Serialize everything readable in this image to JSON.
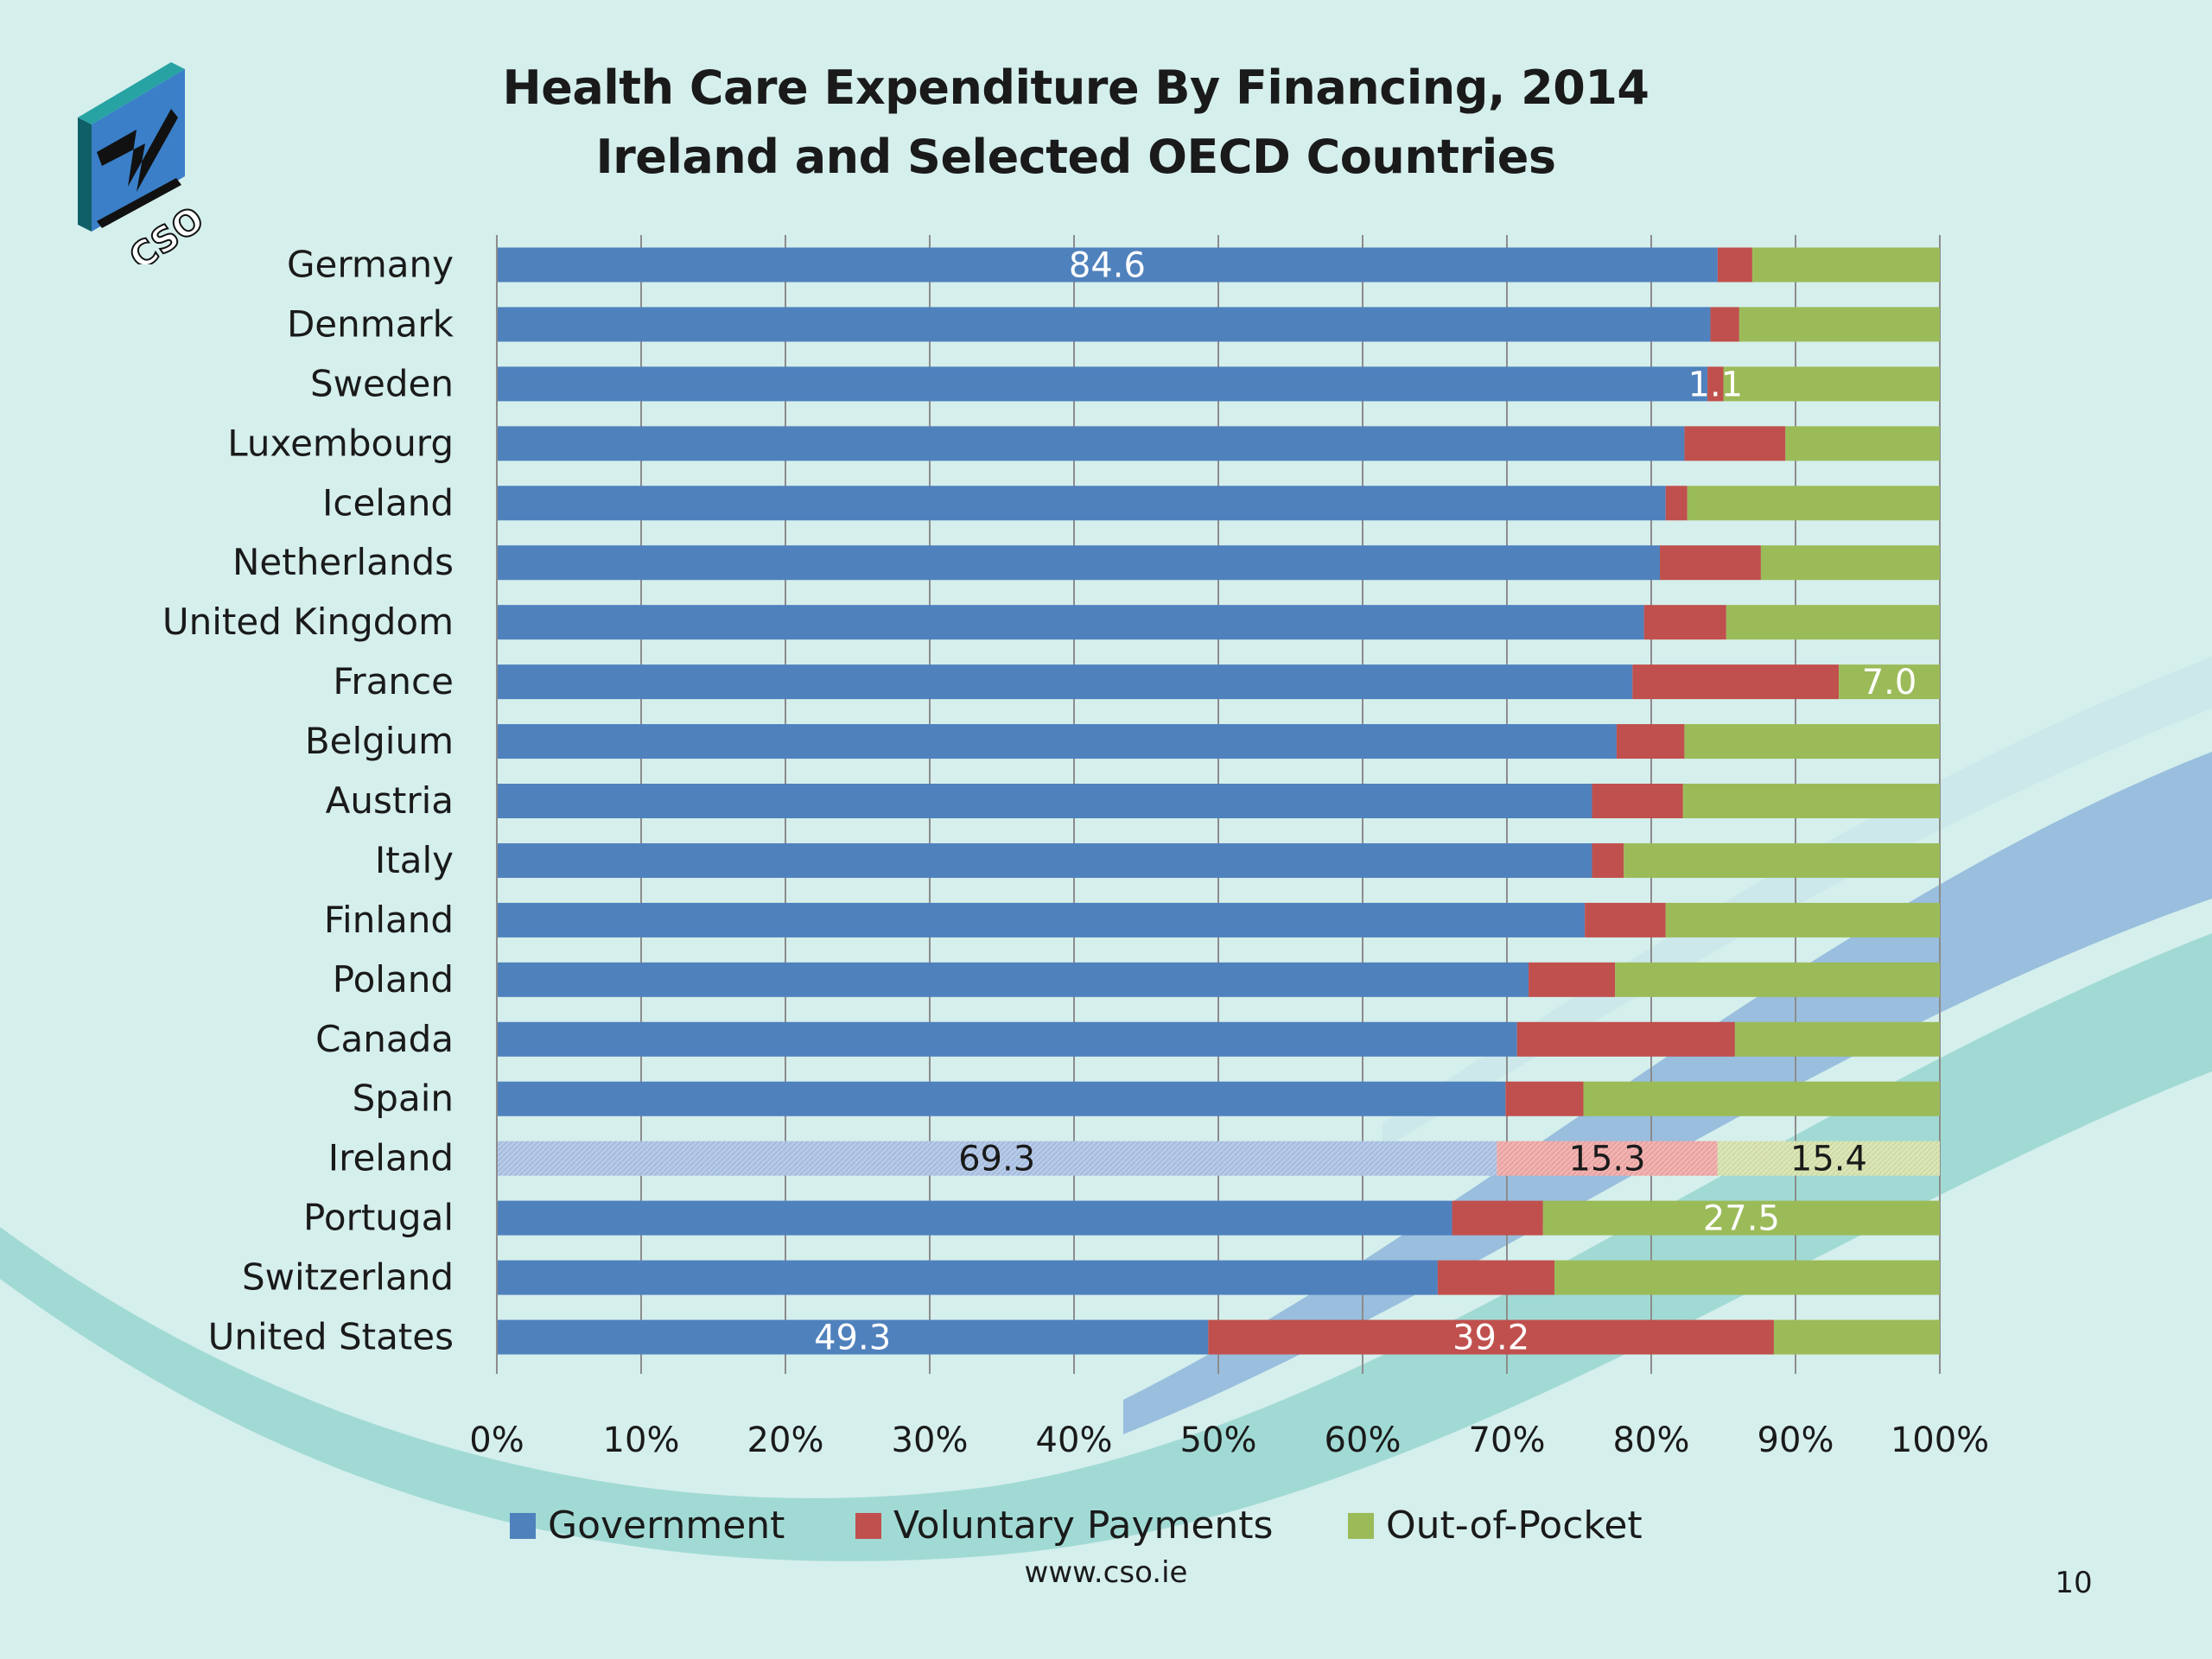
{
  "slide": {
    "title_line1": "Health Care Expenditure By Financing, 2014",
    "title_line2": "Ireland and Selected OECD Countries",
    "footer_url": "www.cso.ie",
    "page_number": "10",
    "logo_text": "CSO"
  },
  "colors": {
    "government": "#4f81bd",
    "voluntary": "#c0504d",
    "out_of_pocket": "#9bbb59",
    "highlight_government": "#b7cbe8",
    "highlight_voluntary": "#f1b4b2",
    "highlight_out_of_pocket": "#dbe6b8"
  },
  "chart_data": {
    "type": "bar",
    "orientation": "horizontal",
    "stacked": "100%",
    "title": "Health Care Expenditure By Financing, 2014 Ireland and Selected OECD Countries",
    "xlabel": "",
    "ylabel": "",
    "xlim": [
      0,
      100
    ],
    "x_ticks": [
      "0%",
      "10%",
      "20%",
      "30%",
      "40%",
      "50%",
      "60%",
      "70%",
      "80%",
      "90%",
      "100%"
    ],
    "grid": true,
    "legend_position": "bottom",
    "highlight_category": "Ireland",
    "categories": [
      "Germany",
      "Denmark",
      "Sweden",
      "Luxembourg",
      "Iceland",
      "Netherlands",
      "United Kingdom",
      "France",
      "Belgium",
      "Austria",
      "Italy",
      "Finland",
      "Poland",
      "Canada",
      "Spain",
      "Ireland",
      "Portugal",
      "Switzerland",
      "United States"
    ],
    "series": [
      {
        "name": "Government",
        "values": [
          84.6,
          84.1,
          83.9,
          82.3,
          81.0,
          80.6,
          79.5,
          78.7,
          77.6,
          75.9,
          75.9,
          75.4,
          71.5,
          70.7,
          69.9,
          69.3,
          66.2,
          65.2,
          49.3
        ]
      },
      {
        "name": "Voluntary Payments",
        "values": [
          2.4,
          2.0,
          1.1,
          7.0,
          1.5,
          7.0,
          5.7,
          14.3,
          4.7,
          6.3,
          2.2,
          5.6,
          6.0,
          15.1,
          5.4,
          15.3,
          6.3,
          8.1,
          39.2
        ]
      },
      {
        "name": "Out-of-Pocket",
        "values": [
          13.0,
          13.9,
          15.0,
          10.7,
          17.5,
          12.4,
          14.8,
          7.0,
          17.7,
          17.8,
          21.9,
          19.0,
          22.5,
          14.2,
          24.7,
          15.4,
          27.5,
          26.7,
          11.5
        ]
      }
    ],
    "data_labels": [
      {
        "category": "Germany",
        "series": "Government",
        "text": "84.6"
      },
      {
        "category": "Sweden",
        "series": "Voluntary Payments",
        "text": "1.1"
      },
      {
        "category": "France",
        "series": "Out-of-Pocket",
        "text": "7.0"
      },
      {
        "category": "Ireland",
        "series": "Government",
        "text": "69.3"
      },
      {
        "category": "Ireland",
        "series": "Voluntary Payments",
        "text": "15.3"
      },
      {
        "category": "Ireland",
        "series": "Out-of-Pocket",
        "text": "15.4"
      },
      {
        "category": "Portugal",
        "series": "Out-of-Pocket",
        "text": "27.5"
      },
      {
        "category": "United States",
        "series": "Government",
        "text": "49.3"
      },
      {
        "category": "United States",
        "series": "Voluntary Payments",
        "text": "39.2"
      }
    ]
  }
}
